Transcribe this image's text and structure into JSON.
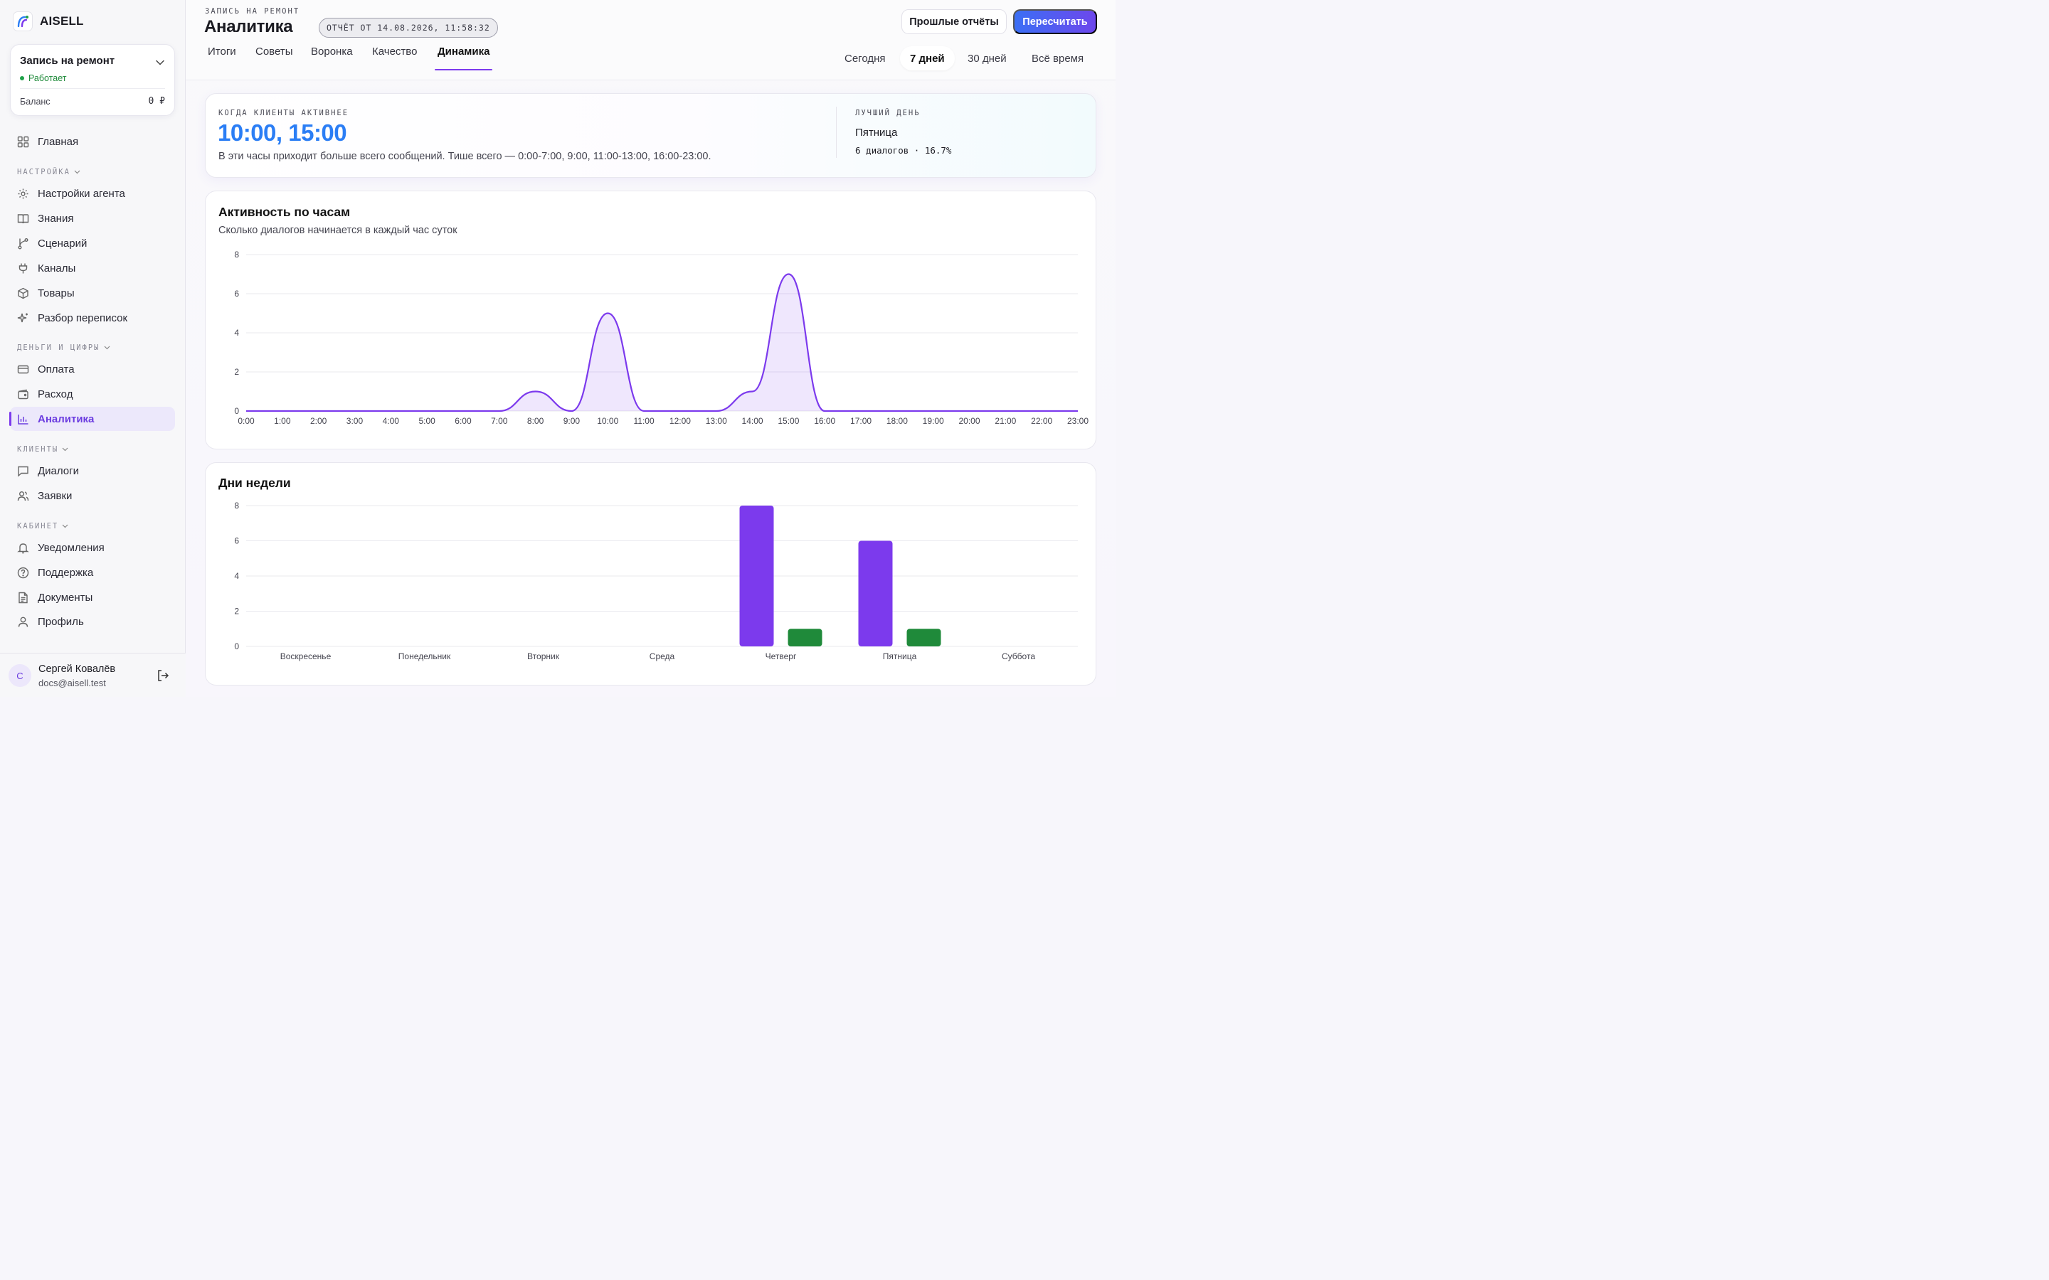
{
  "brand": {
    "name": "AISELL"
  },
  "project": {
    "name": "Запись на ремонт",
    "status": "Работает",
    "balance_label": "Баланс",
    "balance_value": "0 ₽"
  },
  "nav": {
    "home": "Главная",
    "section_settings": "НАСТРОЙКА",
    "agent_settings": "Настройки агента",
    "knowledge": "Знания",
    "scenario": "Сценарий",
    "channels": "Каналы",
    "products": "Товары",
    "review": "Разбор переписок",
    "section_money": "ДЕНЬГИ И ЦИФРЫ",
    "payment": "Оплата",
    "expense": "Расход",
    "analytics": "Аналитика",
    "section_clients": "КЛИЕНТЫ",
    "dialogs": "Диалоги",
    "requests": "Заявки",
    "section_cabinet": "КАБИНЕТ",
    "notifications": "Уведомления",
    "support": "Поддержка",
    "documents": "Документы",
    "profile": "Профиль"
  },
  "user": {
    "initial": "С",
    "name": "Сергей Ковалёв",
    "email": "docs@aisell.test"
  },
  "header": {
    "kicker": "ЗАПИСЬ НА РЕМОНТ",
    "title": "Аналитика",
    "report_chip": "ОТЧЁТ ОТ 14.08.2026, 11:58:32",
    "past_reports": "Прошлые отчёты",
    "recalculate": "Пересчитать",
    "tabs": [
      "Итоги",
      "Советы",
      "Воронка",
      "Качество",
      "Динамика"
    ],
    "active_tab": "Динамика",
    "periods": [
      "Сегодня",
      "7 дней",
      "30 дней",
      "Всё время"
    ],
    "active_period": "7 дней"
  },
  "hero": {
    "label": "КОГДА КЛИЕНТЫ АКТИВНЕЕ",
    "hours": "10:00, 15:00",
    "hint": "В эти часы приходит больше всего сообщений. Тише всего — 0:00-7:00, 9:00, 11:00-13:00, 16:00-23:00.",
    "best_label": "ЛУЧШИЙ ДЕНЬ",
    "best_day": "Пятница",
    "best_stat": "6 диалогов · 16.7%"
  },
  "colors": {
    "accent": "#7c3aed",
    "blue": "#2b7ef5",
    "green": "#1f8a3a"
  },
  "chart_data": [
    {
      "type": "area",
      "title": "Активность по часам",
      "subtitle": "Сколько диалогов начинается в каждый час суток",
      "x": [
        "0:00",
        "1:00",
        "2:00",
        "3:00",
        "4:00",
        "5:00",
        "6:00",
        "7:00",
        "8:00",
        "9:00",
        "10:00",
        "11:00",
        "12:00",
        "13:00",
        "14:00",
        "15:00",
        "16:00",
        "17:00",
        "18:00",
        "19:00",
        "20:00",
        "21:00",
        "22:00",
        "23:00"
      ],
      "values": [
        0,
        0,
        0,
        0,
        0,
        0,
        0,
        0,
        1,
        0,
        5,
        0,
        0,
        0,
        1,
        7,
        0,
        0,
        0,
        0,
        0,
        0,
        0,
        0
      ],
      "ylim": [
        0,
        8
      ],
      "yticks": [
        0,
        2,
        4,
        6,
        8
      ],
      "grid": true,
      "color": "#7c3aed"
    },
    {
      "type": "bar",
      "title": "Дни недели",
      "categories": [
        "Воскресенье",
        "Понедельник",
        "Вторник",
        "Среда",
        "Четверг",
        "Пятница",
        "Суббота"
      ],
      "series": [
        {
          "values": [
            0,
            0,
            0,
            0,
            8,
            6,
            0
          ],
          "color": "#7c3aed"
        },
        {
          "values": [
            0,
            0,
            0,
            0,
            1,
            1,
            0
          ],
          "color": "#1f8a3a"
        }
      ],
      "ylim": [
        0,
        8
      ],
      "yticks": [
        0,
        2,
        4,
        6,
        8
      ],
      "grid": true
    }
  ]
}
